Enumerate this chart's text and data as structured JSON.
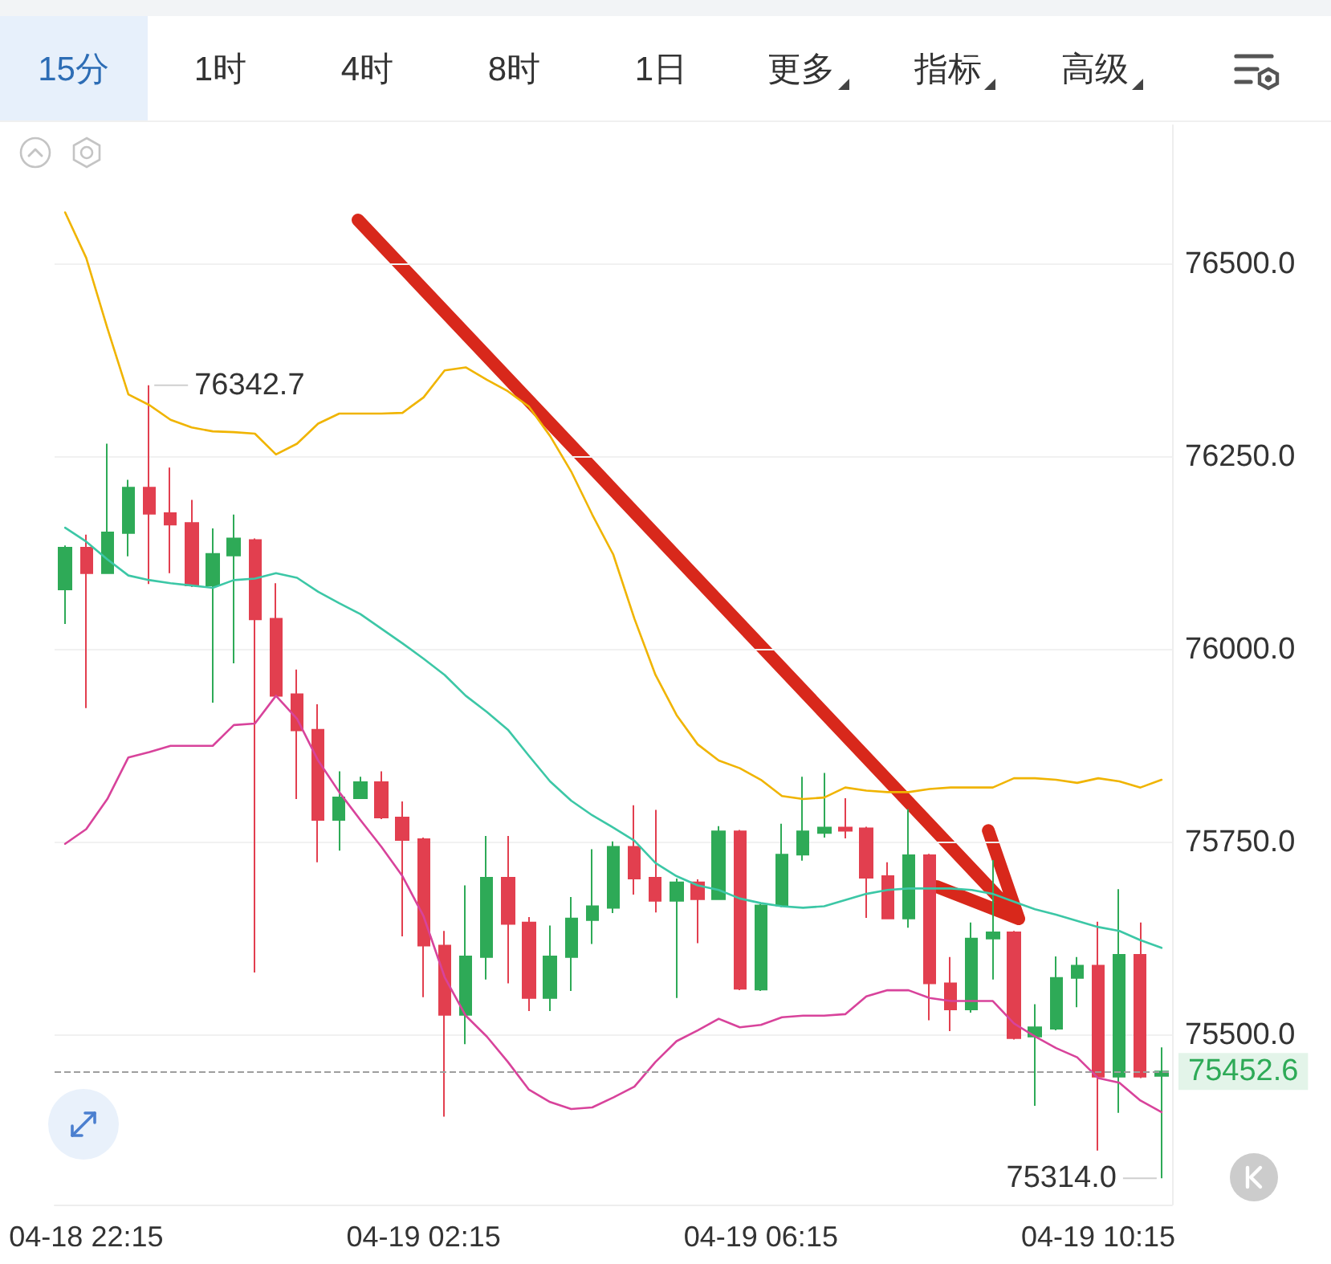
{
  "chart_data": {
    "type": "candlestick",
    "categories": [
      null,
      "04-18 22:15",
      null,
      null,
      null,
      null,
      null,
      null,
      null,
      null,
      null,
      null,
      null,
      null,
      null,
      null,
      null,
      "04-19 02:15",
      null,
      null,
      null,
      null,
      null,
      null,
      null,
      null,
      null,
      null,
      null,
      null,
      null,
      null,
      null,
      "04-19 06:15",
      null,
      null,
      null,
      null,
      null,
      null,
      null,
      null,
      null,
      null,
      null,
      null,
      null,
      null,
      null,
      "04-19 10:15",
      null,
      null,
      null
    ],
    "ohlc": [
      [
        76078,
        76135,
        76033,
        76132
      ],
      [
        76132,
        76149,
        75924,
        76099
      ],
      [
        76099,
        76267,
        76099,
        76152
      ],
      [
        76151,
        76220,
        76121,
        76210
      ],
      [
        76210,
        76342.7,
        76085,
        76176
      ],
      [
        76177,
        76236,
        76099,
        76162
      ],
      [
        76164,
        76194,
        76081,
        76083
      ],
      [
        76083,
        76157,
        75931,
        76124
      ],
      [
        76122,
        76175,
        75982,
        76144
      ],
      [
        76142,
        76144,
        75581,
        76039
      ],
      [
        76040,
        76086,
        75938,
        75940
      ],
      [
        75942,
        75974,
        75806,
        75895
      ],
      [
        75896,
        75929,
        75724,
        75779
      ],
      [
        75779,
        75842,
        75739,
        75808
      ],
      [
        75807,
        75835,
        75806,
        75828
      ],
      [
        75828,
        75842,
        75780,
        75782
      ],
      [
        75782,
        75803,
        75628,
        75753
      ],
      [
        75754,
        75756,
        75549,
        75616
      ],
      [
        75616,
        75635,
        75394,
        75526
      ],
      [
        75526,
        75694,
        75488,
        75602
      ],
      [
        75601,
        75758,
        75572,
        75704
      ],
      [
        75704,
        75758,
        75567,
        75644
      ],
      [
        75646,
        75653,
        75531,
        75548
      ],
      [
        75548,
        75642,
        75531,
        75602
      ],
      [
        75601,
        75679,
        75557,
        75651
      ],
      [
        75649,
        75741,
        75618,
        75667
      ],
      [
        75665,
        75751,
        75658,
        75744
      ],
      [
        75744,
        75798,
        75682,
        75703
      ],
      [
        75704,
        75792,
        75659,
        75674
      ],
      [
        75674,
        75703,
        75548,
        75698
      ],
      [
        75698,
        75702,
        75619,
        75676
      ],
      [
        75676,
        75771,
        75675,
        75764
      ],
      [
        75764,
        75766,
        75558,
        75560
      ],
      [
        75559,
        75670,
        75557,
        75668
      ],
      [
        75668,
        75774,
        75666,
        75734
      ],
      [
        75734,
        75835,
        75726,
        75764
      ],
      [
        75762,
        75840,
        75756,
        75769
      ],
      [
        75769,
        75807,
        75755,
        75765
      ],
      [
        75768,
        75770,
        75652,
        75704
      ],
      [
        75706,
        75724,
        75650,
        75651
      ],
      [
        75651,
        75793,
        75639,
        75733
      ],
      [
        75733,
        75735,
        75519,
        75567
      ],
      [
        75567,
        75601,
        75505,
        75533
      ],
      [
        75533,
        75646,
        75529,
        75625
      ],
      [
        75625,
        75727,
        75572,
        75633
      ],
      [
        75633,
        75635,
        75494,
        75496
      ],
      [
        75498,
        75540,
        75408,
        75510
      ],
      [
        75508,
        75602,
        75506,
        75574
      ],
      [
        75574,
        75601,
        75536,
        75590
      ],
      [
        75590,
        75647,
        75350,
        75446
      ],
      [
        75446,
        75689,
        75399,
        75604
      ],
      [
        75604,
        75646,
        75444,
        75446
      ],
      [
        75447,
        75484,
        75314,
        75452.6
      ]
    ],
    "value_labels": [
      null,
      null,
      null,
      null,
      "76342.7",
      null,
      null,
      null,
      null,
      null,
      null,
      null,
      null,
      null,
      null,
      null,
      null,
      null,
      null,
      null,
      null,
      null,
      null,
      null,
      null,
      null,
      null,
      null,
      null,
      null,
      null,
      null,
      null,
      null,
      null,
      null,
      null,
      null,
      null,
      null,
      null,
      null,
      null,
      null,
      null,
      null,
      null,
      null,
      null,
      null,
      null,
      null,
      "75314.0"
    ],
    "colors": [
      "#2eaa57",
      "#e23f4f",
      "#2eaa57",
      "#2eaa57",
      "#e23f4f",
      "#e23f4f",
      "#e23f4f",
      "#2eaa57",
      "#2eaa57",
      "#e23f4f",
      "#e23f4f",
      "#e23f4f",
      "#e23f4f",
      "#2eaa57",
      "#2eaa57",
      "#e23f4f",
      "#e23f4f",
      "#e23f4f",
      "#e23f4f",
      "#2eaa57",
      "#2eaa57",
      "#e23f4f",
      "#e23f4f",
      "#2eaa57",
      "#2eaa57",
      "#2eaa57",
      "#2eaa57",
      "#e23f4f",
      "#e23f4f",
      "#2eaa57",
      "#e23f4f",
      "#2eaa57",
      "#e23f4f",
      "#2eaa57",
      "#2eaa57",
      "#2eaa57",
      "#2eaa57",
      "#e23f4f",
      "#e23f4f",
      "#e23f4f",
      "#2eaa57",
      "#e23f4f",
      "#e23f4f",
      "#2eaa57",
      "#2eaa57",
      "#e23f4f",
      "#2eaa57",
      "#2eaa57",
      "#2eaa57",
      "#e23f4f",
      "#2eaa57",
      "#e23f4f",
      "#2eaa57"
    ],
    "series": [
      {
        "type": "line",
        "color": "#f0b400",
        "values": [
          76567,
          76508,
          76417,
          76331,
          76317,
          76298,
          76288,
          76283,
          76282,
          76280,
          76253,
          76267,
          76293,
          76306,
          76306,
          76306,
          76307,
          76327,
          76362,
          76366,
          76350,
          76335,
          76315,
          76277,
          76231,
          76175,
          76123,
          76040,
          75967,
          75915,
          75877,
          75856,
          75846,
          75831,
          75810,
          75806,
          75808,
          75821,
          75817,
          75815,
          75815,
          75819,
          75821,
          75821,
          75821,
          75833,
          75833,
          75831,
          75827,
          75833,
          75829,
          75821,
          75831
        ]
      },
      {
        "type": "line",
        "color": "#3cc7a6",
        "values": [
          76158,
          76140,
          76117,
          76096,
          76090,
          76086,
          76083,
          76080,
          76090,
          76092,
          76099,
          76093,
          76075,
          76060,
          76046,
          76027,
          76008,
          75988,
          75967,
          75940,
          75919,
          75896,
          75862,
          75829,
          75804,
          75785,
          75769,
          75752,
          75723,
          75706,
          75694,
          75688,
          75677,
          75671,
          75667,
          75665,
          75667,
          75675,
          75683,
          75688,
          75690,
          75690,
          75690,
          75688,
          75683,
          75673,
          75663,
          75656,
          75648,
          75640,
          75635,
          75623,
          75613
        ]
      },
      {
        "type": "line",
        "color": "#d8439b",
        "values": [
          75748,
          75767,
          75806,
          75860,
          75867,
          75875,
          75875,
          75875,
          75902,
          75904,
          75940,
          75910,
          75856,
          75815,
          75779,
          75744,
          75706,
          75654,
          75575,
          75525,
          75498,
          75465,
          75429,
          75413,
          75404,
          75406,
          75419,
          75433,
          75465,
          75492,
          75506,
          75521,
          75510,
          75513,
          75523,
          75525,
          75525,
          75527,
          75550,
          75558,
          75558,
          75548,
          75544,
          75544,
          75544,
          75515,
          75498,
          75483,
          75471,
          75444,
          75438,
          75415,
          75400
        ]
      }
    ],
    "ylim": [
      75280,
      76680
    ],
    "yticks": [
      {
        "value": 75500,
        "label": "75500.0"
      },
      {
        "value": 75750,
        "label": "75750.0"
      },
      {
        "value": 76000,
        "label": "76000.0"
      },
      {
        "value": 76250,
        "label": "76250.0"
      },
      {
        "value": 76500,
        "label": "76500.0"
      }
    ],
    "ref_lines": [
      {
        "axis": "y",
        "value": 75452.6,
        "label": "75452.6",
        "color": "#9e9e9e",
        "line_style": "dashed"
      }
    ],
    "annotations": [
      "15分",
      "1时",
      "4时",
      "8时",
      "1日",
      "更多",
      "指标",
      "高级"
    ],
    "grid": "y",
    "marker": "none"
  }
}
